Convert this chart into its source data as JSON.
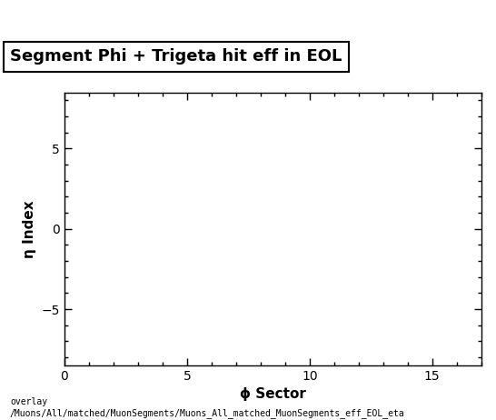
{
  "title": "Segment Phi + Trigeta hit eff in EOL",
  "xlabel": "ϕ Sector",
  "ylabel": "η Index",
  "xlim": [
    0,
    17
  ],
  "ylim": [
    -8.5,
    8.5
  ],
  "xticks": [
    0,
    5,
    10,
    15
  ],
  "yticks": [
    -5,
    0,
    5
  ],
  "background_color": "#ffffff",
  "plot_bg_color": "#ffffff",
  "footer_line1": "overlay",
  "footer_line2": "/Muons/All/matched/MuonSegments/Muons_All_matched_MuonSegments_eff_EOL_eta",
  "title_fontsize": 13,
  "axis_label_fontsize": 11,
  "tick_fontsize": 10,
  "footer_fontsize": 7.0
}
